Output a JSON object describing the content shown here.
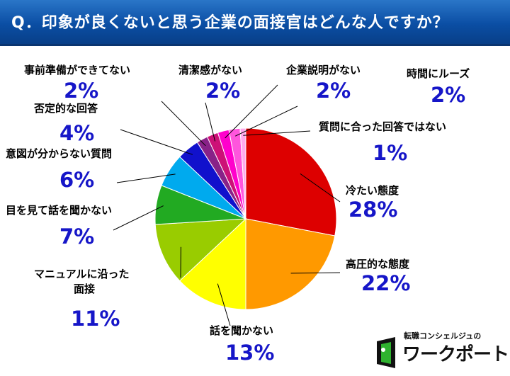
{
  "header": {
    "title": "Q．印象が良くないと思う企業の面接官はどんな人ですか？"
  },
  "logo": {
    "subtitle": "転職コンシェルジュの",
    "name": "ワークポート",
    "icon": "door-icon"
  },
  "colors": {
    "header_bg": "#0b4ea4",
    "value_text": "#1616c8"
  },
  "chart_data": {
    "type": "pie",
    "title": "Q．印象が良くないと思う企業の面接官はどんな人ですか？",
    "direction": "clockwise-from-top",
    "slices": [
      {
        "label": "冷たい態度",
        "value": 28,
        "value_label": "28%",
        "color": "#dd0000"
      },
      {
        "label": "高圧的な態度",
        "value": 22,
        "value_label": "22%",
        "color": "#ff9900"
      },
      {
        "label": "話を聞かない",
        "value": 13,
        "value_label": "13%",
        "color": "#ffff00"
      },
      {
        "label": "マニュアルに沿った面接",
        "value": 11,
        "value_label": "11%",
        "color": "#99cc00"
      },
      {
        "label": "目を見て話を聞かない",
        "value": 7,
        "value_label": "7%",
        "color": "#22aa22"
      },
      {
        "label": "意図が分からない質問",
        "value": 6,
        "value_label": "6%",
        "color": "#00aaee"
      },
      {
        "label": "否定的な回答",
        "value": 4,
        "value_label": "4%",
        "color": "#1111cc"
      },
      {
        "label": "事前準備ができてない",
        "value": 2,
        "value_label": "2%",
        "color": "#882288"
      },
      {
        "label": "清潔感がない",
        "value": 2,
        "value_label": "2%",
        "color": "#cc1177"
      },
      {
        "label": "企業説明がない",
        "value": 2,
        "value_label": "2%",
        "color": "#ff00cc"
      },
      {
        "label": "時間にルーズ",
        "value": 2,
        "value_label": "2%",
        "color": "#ff55dd"
      },
      {
        "label": "質問に合った回答ではない",
        "value": 1,
        "value_label": "1%",
        "color": "#ffaaee"
      }
    ]
  }
}
